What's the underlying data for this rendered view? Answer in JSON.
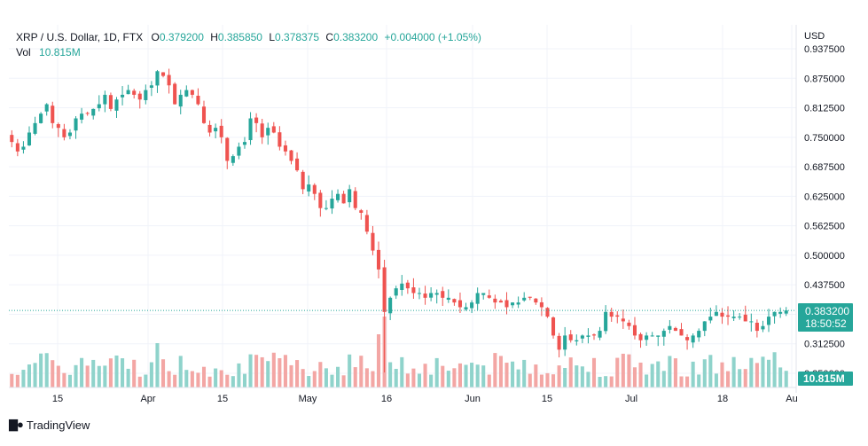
{
  "legend": {
    "title": "XRP / U.S. Dollar, 1D, FTX",
    "o_label": "O",
    "o_value": "0.379200",
    "h_label": "H",
    "h_value": "0.385850",
    "l_label": "L",
    "l_value": "0.378375",
    "c_label": "C",
    "c_value": "0.383200",
    "change": "+0.004000 (+1.05%)",
    "vol_label": "Vol",
    "vol_value": "10.815M"
  },
  "axis": {
    "currency": "USD",
    "price_badge": "0.383200",
    "countdown_badge": "18:50:52",
    "volume_badge": "10.815M"
  },
  "branding": {
    "name": "TradingView"
  },
  "colors": {
    "up": "#26a69a",
    "down": "#ef5350",
    "up_vol": "#8fd3cb",
    "down_vol": "#f3a6a4",
    "grid": "#f0f3fa"
  },
  "chart_data": {
    "type": "candlestick",
    "title": "XRP / U.S. Dollar, 1D, FTX",
    "ylim": [
      0.25,
      0.9375
    ],
    "y_ticks": [
      "0.937500",
      "0.875000",
      "0.812500",
      "0.750000",
      "0.687500",
      "0.625000",
      "0.562500",
      "0.500000",
      "0.437500",
      "0.375000",
      "0.312500",
      "0.250000"
    ],
    "x_ticks": [
      "15",
      "Apr",
      "15",
      "May",
      "16",
      "Jun",
      "15",
      "Jul",
      "18",
      "Au"
    ],
    "last_price": 0.3832,
    "last_volume": "10.815M",
    "candles_close": [
      0.74,
      0.72,
      0.73,
      0.76,
      0.78,
      0.8,
      0.82,
      0.78,
      0.77,
      0.75,
      0.76,
      0.79,
      0.8,
      0.8,
      0.81,
      0.82,
      0.84,
      0.81,
      0.83,
      0.84,
      0.85,
      0.84,
      0.83,
      0.85,
      0.86,
      0.89,
      0.88,
      0.86,
      0.82,
      0.84,
      0.85,
      0.84,
      0.82,
      0.78,
      0.76,
      0.77,
      0.75,
      0.7,
      0.71,
      0.73,
      0.74,
      0.79,
      0.78,
      0.75,
      0.77,
      0.76,
      0.73,
      0.72,
      0.7,
      0.68,
      0.64,
      0.65,
      0.63,
      0.6,
      0.6,
      0.62,
      0.63,
      0.61,
      0.64,
      0.6,
      0.59,
      0.55,
      0.51,
      0.47,
      0.38,
      0.41,
      0.43,
      0.44,
      0.43,
      0.42,
      0.42,
      0.41,
      0.42,
      0.42,
      0.41,
      0.41,
      0.4,
      0.39,
      0.39,
      0.4,
      0.42,
      0.42,
      0.41,
      0.4,
      0.4,
      0.39,
      0.4,
      0.4,
      0.41,
      0.41,
      0.4,
      0.39,
      0.37,
      0.33,
      0.3,
      0.33,
      0.32,
      0.32,
      0.33,
      0.33,
      0.33,
      0.34,
      0.38,
      0.37,
      0.37,
      0.36,
      0.35,
      0.33,
      0.32,
      0.33,
      0.33,
      0.33,
      0.34,
      0.35,
      0.34,
      0.33,
      0.32,
      0.33,
      0.34,
      0.36,
      0.37,
      0.38,
      0.37,
      0.37,
      0.37,
      0.37,
      0.36,
      0.36,
      0.34,
      0.35,
      0.37,
      0.38,
      0.38,
      0.3832
    ]
  }
}
